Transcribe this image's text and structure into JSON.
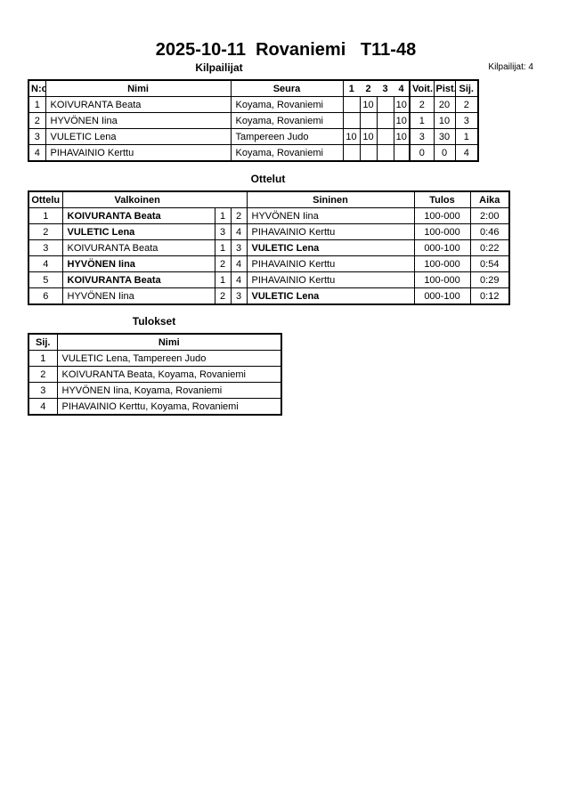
{
  "title": "2025-10-11  Rovaniemi   T11-48",
  "competitors": {
    "heading": "Kilpailijat",
    "count_label": "Kilpailijat: 4",
    "headers": [
      "N:o",
      "Nimi",
      "Seura",
      "1",
      "2",
      "3",
      "4",
      "Voit.",
      "Pist.",
      "Sij."
    ],
    "rows": [
      {
        "no": "1",
        "name": "KOIVURANTA Beata",
        "club": "Koyama, Rovaniemi",
        "s1": "",
        "s2": "10",
        "s3": "",
        "s4": "10",
        "wins": "2",
        "points": "20",
        "rank": "2"
      },
      {
        "no": "2",
        "name": "HYVÖNEN Iina",
        "club": "Koyama, Rovaniemi",
        "s1": "",
        "s2": "",
        "s3": "",
        "s4": "10",
        "wins": "1",
        "points": "10",
        "rank": "3"
      },
      {
        "no": "3",
        "name": "VULETIC Lena",
        "club": "Tampereen Judo",
        "s1": "10",
        "s2": "10",
        "s3": "",
        "s4": "10",
        "wins": "3",
        "points": "30",
        "rank": "1"
      },
      {
        "no": "4",
        "name": "PIHAVAINIO Kerttu",
        "club": "Koyama, Rovaniemi",
        "s1": "",
        "s2": "",
        "s3": "",
        "s4": "",
        "wins": "0",
        "points": "0",
        "rank": "4"
      }
    ]
  },
  "matches": {
    "heading": "Ottelut",
    "headers": [
      "Ottelu",
      "Valkoinen",
      "Sininen",
      "Tulos",
      "Aika"
    ],
    "rows": [
      {
        "no": "1",
        "white": "KOIVURANTA Beata",
        "wn": "1",
        "bn": "2",
        "blue": "HYVÖNEN Iina",
        "result": "100-000",
        "time": "2:00",
        "winner": "white"
      },
      {
        "no": "2",
        "white": "VULETIC Lena",
        "wn": "3",
        "bn": "4",
        "blue": "PIHAVAINIO Kerttu",
        "result": "100-000",
        "time": "0:46",
        "winner": "white"
      },
      {
        "no": "3",
        "white": "KOIVURANTA Beata",
        "wn": "1",
        "bn": "3",
        "blue": "VULETIC Lena",
        "result": "000-100",
        "time": "0:22",
        "winner": "blue"
      },
      {
        "no": "4",
        "white": "HYVÖNEN Iina",
        "wn": "2",
        "bn": "4",
        "blue": "PIHAVAINIO Kerttu",
        "result": "100-000",
        "time": "0:54",
        "winner": "white"
      },
      {
        "no": "5",
        "white": "KOIVURANTA Beata",
        "wn": "1",
        "bn": "4",
        "blue": "PIHAVAINIO Kerttu",
        "result": "100-000",
        "time": "0:29",
        "winner": "white"
      },
      {
        "no": "6",
        "white": "HYVÖNEN Iina",
        "wn": "2",
        "bn": "3",
        "blue": "VULETIC Lena",
        "result": "000-100",
        "time": "0:12",
        "winner": "blue"
      }
    ]
  },
  "results": {
    "heading": "Tulokset",
    "headers": [
      "Sij.",
      "Nimi"
    ],
    "rows": [
      {
        "rank": "1",
        "name": "VULETIC Lena, Tampereen Judo"
      },
      {
        "rank": "2",
        "name": "KOIVURANTA Beata, Koyama, Rovaniemi"
      },
      {
        "rank": "3",
        "name": "HYVÖNEN Iina, Koyama, Rovaniemi"
      },
      {
        "rank": "4",
        "name": "PIHAVAINIO Kerttu, Koyama, Rovaniemi"
      }
    ]
  }
}
